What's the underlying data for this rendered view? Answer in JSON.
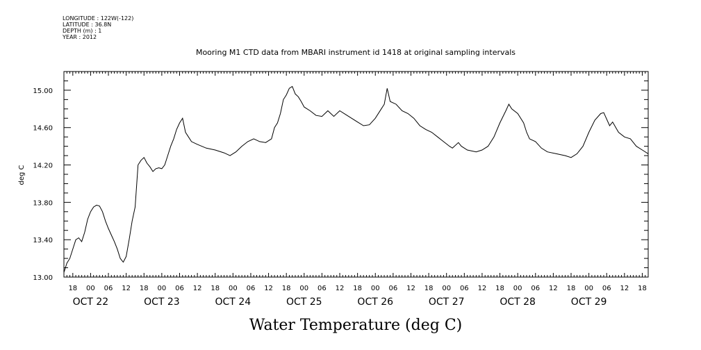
{
  "header": {
    "longitude": "LONGITUDE : 122W(-122)",
    "latitude": "LATITUDE : 36.8N",
    "depth": "DEPTH (m) : 1",
    "year": "YEAR : 2012"
  },
  "chart_data": {
    "type": "line",
    "title": "Mooring M1 CTD data from MBARI instrument id 1418 at original sampling intervals",
    "xlabel": "Water Temperature (deg C)",
    "ylabel": "deg C",
    "ylim": [
      13.0,
      15.2
    ],
    "yticks": [
      "13.00",
      "13.40",
      "13.80",
      "14.20",
      "14.60",
      "15.00"
    ],
    "xlim": [
      "2012-10-21T15:00",
      "2012-10-29T20:00"
    ],
    "x_hour_ticks": [
      "18",
      "00",
      "06",
      "12",
      "18",
      "00",
      "06",
      "12",
      "18",
      "00",
      "06",
      "12",
      "18",
      "00",
      "06",
      "12",
      "18",
      "00",
      "06",
      "12",
      "18",
      "00",
      "06",
      "12",
      "18",
      "00",
      "06",
      "12",
      "18",
      "00",
      "06",
      "12",
      "18",
      "00",
      "06",
      "12"
    ],
    "x_day_labels": [
      "OCT 22",
      "OCT 23",
      "OCT 24",
      "OCT 25",
      "OCT 26",
      "OCT 27",
      "OCT 28",
      "OCT 29"
    ],
    "series": [
      {
        "color": "#000000",
        "points": [
          [
            "2012-10-21T15:00",
            13.05
          ],
          [
            "2012-10-21T16:00",
            13.15
          ],
          [
            "2012-10-21T17:00",
            13.2
          ],
          [
            "2012-10-21T18:00",
            13.3
          ],
          [
            "2012-10-21T19:00",
            13.4
          ],
          [
            "2012-10-21T20:00",
            13.42
          ],
          [
            "2012-10-21T21:00",
            13.38
          ],
          [
            "2012-10-21T22:00",
            13.48
          ],
          [
            "2012-10-21T23:00",
            13.62
          ],
          [
            "2012-10-22T00:00",
            13.7
          ],
          [
            "2012-10-22T01:00",
            13.75
          ],
          [
            "2012-10-22T02:00",
            13.77
          ],
          [
            "2012-10-22T03:00",
            13.76
          ],
          [
            "2012-10-22T04:00",
            13.7
          ],
          [
            "2012-10-22T05:00",
            13.6
          ],
          [
            "2012-10-22T06:00",
            13.52
          ],
          [
            "2012-10-22T07:00",
            13.45
          ],
          [
            "2012-10-22T08:00",
            13.38
          ],
          [
            "2012-10-22T09:00",
            13.3
          ],
          [
            "2012-10-22T10:00",
            13.2
          ],
          [
            "2012-10-22T11:00",
            13.16
          ],
          [
            "2012-10-22T12:00",
            13.22
          ],
          [
            "2012-10-22T13:00",
            13.4
          ],
          [
            "2012-10-22T14:00",
            13.6
          ],
          [
            "2012-10-22T15:00",
            13.75
          ],
          [
            "2012-10-22T16:00",
            14.2
          ],
          [
            "2012-10-22T17:00",
            14.25
          ],
          [
            "2012-10-22T18:00",
            14.28
          ],
          [
            "2012-10-22T19:00",
            14.22
          ],
          [
            "2012-10-22T20:00",
            14.18
          ],
          [
            "2012-10-22T21:00",
            14.13
          ],
          [
            "2012-10-22T22:00",
            14.16
          ],
          [
            "2012-10-22T23:00",
            14.17
          ],
          [
            "2012-10-23T00:00",
            14.16
          ],
          [
            "2012-10-23T01:00",
            14.2
          ],
          [
            "2012-10-23T02:00",
            14.3
          ],
          [
            "2012-10-23T03:00",
            14.4
          ],
          [
            "2012-10-23T04:00",
            14.48
          ],
          [
            "2012-10-23T05:00",
            14.58
          ],
          [
            "2012-10-23T06:00",
            14.65
          ],
          [
            "2012-10-23T07:00",
            14.7
          ],
          [
            "2012-10-23T08:00",
            14.55
          ],
          [
            "2012-10-23T09:00",
            14.5
          ],
          [
            "2012-10-23T10:00",
            14.45
          ],
          [
            "2012-10-23T12:00",
            14.42
          ],
          [
            "2012-10-23T15:00",
            14.38
          ],
          [
            "2012-10-23T18:00",
            14.36
          ],
          [
            "2012-10-23T21:00",
            14.33
          ],
          [
            "2012-10-23T23:00",
            14.3
          ],
          [
            "2012-10-24T01:00",
            14.34
          ],
          [
            "2012-10-24T03:00",
            14.4
          ],
          [
            "2012-10-24T05:00",
            14.45
          ],
          [
            "2012-10-24T07:00",
            14.48
          ],
          [
            "2012-10-24T09:00",
            14.45
          ],
          [
            "2012-10-24T11:00",
            14.44
          ],
          [
            "2012-10-24T13:00",
            14.48
          ],
          [
            "2012-10-24T14:00",
            14.6
          ],
          [
            "2012-10-24T15:00",
            14.65
          ],
          [
            "2012-10-24T16:00",
            14.75
          ],
          [
            "2012-10-24T17:00",
            14.9
          ],
          [
            "2012-10-24T18:00",
            14.95
          ],
          [
            "2012-10-24T19:00",
            15.02
          ],
          [
            "2012-10-24T20:00",
            15.04
          ],
          [
            "2012-10-24T21:00",
            14.96
          ],
          [
            "2012-10-24T22:00",
            14.93
          ],
          [
            "2012-10-24T23:00",
            14.88
          ],
          [
            "2012-10-25T00:00",
            14.82
          ],
          [
            "2012-10-25T02:00",
            14.78
          ],
          [
            "2012-10-25T04:00",
            14.73
          ],
          [
            "2012-10-25T06:00",
            14.72
          ],
          [
            "2012-10-25T08:00",
            14.78
          ],
          [
            "2012-10-25T10:00",
            14.72
          ],
          [
            "2012-10-25T12:00",
            14.78
          ],
          [
            "2012-10-25T14:00",
            14.74
          ],
          [
            "2012-10-25T16:00",
            14.7
          ],
          [
            "2012-10-25T18:00",
            14.66
          ],
          [
            "2012-10-25T20:00",
            14.62
          ],
          [
            "2012-10-25T22:00",
            14.63
          ],
          [
            "2012-10-26T00:00",
            14.7
          ],
          [
            "2012-10-26T02:00",
            14.8
          ],
          [
            "2012-10-26T03:00",
            14.85
          ],
          [
            "2012-10-26T04:00",
            15.02
          ],
          [
            "2012-10-26T05:00",
            14.88
          ],
          [
            "2012-10-26T07:00",
            14.85
          ],
          [
            "2012-10-26T09:00",
            14.78
          ],
          [
            "2012-10-26T11:00",
            14.75
          ],
          [
            "2012-10-26T13:00",
            14.7
          ],
          [
            "2012-10-26T15:00",
            14.62
          ],
          [
            "2012-10-26T17:00",
            14.58
          ],
          [
            "2012-10-26T19:00",
            14.55
          ],
          [
            "2012-10-26T21:00",
            14.5
          ],
          [
            "2012-10-26T23:00",
            14.45
          ],
          [
            "2012-10-27T01:00",
            14.4
          ],
          [
            "2012-10-27T02:00",
            14.38
          ],
          [
            "2012-10-27T04:00",
            14.44
          ],
          [
            "2012-10-27T05:00",
            14.4
          ],
          [
            "2012-10-27T07:00",
            14.36
          ],
          [
            "2012-10-27T10:00",
            14.34
          ],
          [
            "2012-10-27T12:00",
            14.36
          ],
          [
            "2012-10-27T14:00",
            14.4
          ],
          [
            "2012-10-27T16:00",
            14.5
          ],
          [
            "2012-10-27T18:00",
            14.65
          ],
          [
            "2012-10-27T20:00",
            14.78
          ],
          [
            "2012-10-27T21:00",
            14.85
          ],
          [
            "2012-10-27T22:00",
            14.8
          ],
          [
            "2012-10-28T00:00",
            14.75
          ],
          [
            "2012-10-28T02:00",
            14.65
          ],
          [
            "2012-10-28T03:00",
            14.55
          ],
          [
            "2012-10-28T04:00",
            14.48
          ],
          [
            "2012-10-28T06:00",
            14.45
          ],
          [
            "2012-10-28T08:00",
            14.38
          ],
          [
            "2012-10-28T10:00",
            14.34
          ],
          [
            "2012-10-28T13:00",
            14.32
          ],
          [
            "2012-10-28T16:00",
            14.3
          ],
          [
            "2012-10-28T18:00",
            14.28
          ],
          [
            "2012-10-28T20:00",
            14.32
          ],
          [
            "2012-10-28T22:00",
            14.4
          ],
          [
            "2012-10-29T00:00",
            14.55
          ],
          [
            "2012-10-29T02:00",
            14.68
          ],
          [
            "2012-10-29T04:00",
            14.75
          ],
          [
            "2012-10-29T05:00",
            14.76
          ],
          [
            "2012-10-29T07:00",
            14.62
          ],
          [
            "2012-10-29T08:00",
            14.66
          ],
          [
            "2012-10-29T10:00",
            14.55
          ],
          [
            "2012-10-29T12:00",
            14.5
          ],
          [
            "2012-10-29T14:00",
            14.48
          ],
          [
            "2012-10-29T15:00",
            14.44
          ],
          [
            "2012-10-29T16:00",
            14.4
          ],
          [
            "2012-10-29T18:00",
            14.36
          ],
          [
            "2012-10-29T20:00",
            14.32
          ]
        ]
      }
    ]
  }
}
